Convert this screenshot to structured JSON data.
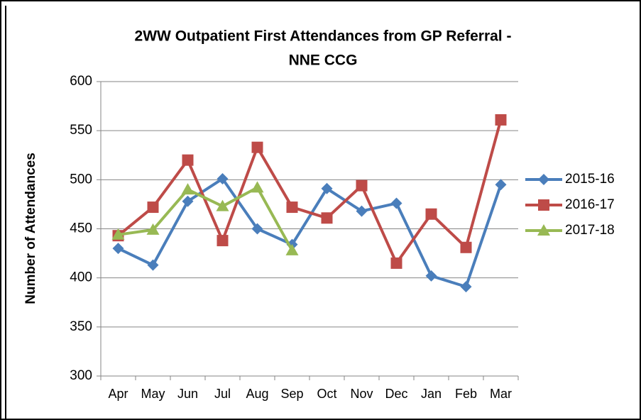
{
  "chart_data": {
    "type": "line",
    "title": [
      "2WW Outpatient First Attendances from GP Referral -",
      "NNE CCG"
    ],
    "y_label": "Number of Attendances",
    "categories": [
      "Apr",
      "May",
      "Jun",
      "Jul",
      "Aug",
      "Sep",
      "Oct",
      "Nov",
      "Dec",
      "Jan",
      "Feb",
      "Mar"
    ],
    "series": [
      {
        "name": "2015-16",
        "color": "#4a7ebb",
        "marker": "diamond",
        "values": [
          430,
          413,
          478,
          501,
          450,
          434,
          491,
          468,
          476,
          402,
          391,
          495
        ]
      },
      {
        "name": "2016-17",
        "color": "#be4b48",
        "marker": "square",
        "values": [
          443,
          472,
          520,
          438,
          533,
          472,
          461,
          494,
          415,
          465,
          431,
          561
        ]
      },
      {
        "name": "2017-18",
        "color": "#98b954",
        "marker": "triangle",
        "values": [
          444,
          449,
          490,
          473,
          492,
          428,
          null,
          null,
          null,
          null,
          null,
          null
        ]
      }
    ],
    "ylim": [
      300,
      600
    ],
    "yticks": [
      300,
      350,
      400,
      450,
      500,
      550,
      600
    ],
    "grid": true,
    "legend": "right"
  }
}
